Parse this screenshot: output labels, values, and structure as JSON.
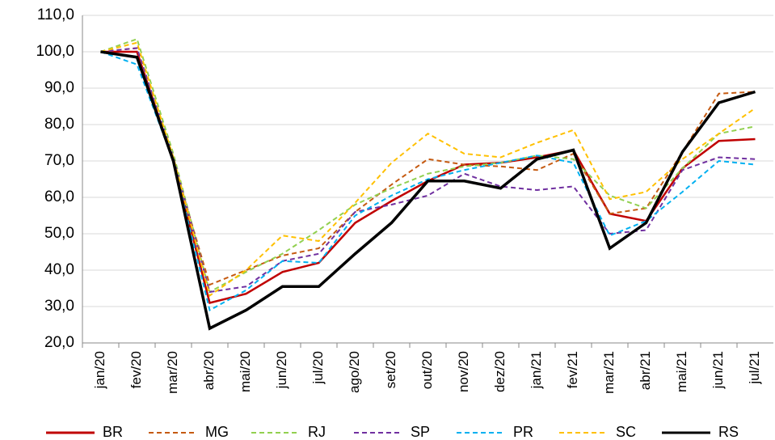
{
  "chart_data": {
    "type": "line",
    "categories": [
      "jan/20",
      "fev/20",
      "mar/20",
      "abr/20",
      "mai/20",
      "jun/20",
      "jul/20",
      "ago/20",
      "set/20",
      "out/20",
      "nov/20",
      "dez/20",
      "jan/21",
      "fev/21",
      "mar/21",
      "abr/21",
      "mai/21",
      "jun/21",
      "jul/21"
    ],
    "ylim": [
      20,
      110
    ],
    "yticks": [
      {
        "value": 20,
        "label": "20,0"
      },
      {
        "value": 30,
        "label": "30,0"
      },
      {
        "value": 40,
        "label": "40,0"
      },
      {
        "value": 50,
        "label": "50,0"
      },
      {
        "value": 60,
        "label": "60,0"
      },
      {
        "value": 70,
        "label": "70,0"
      },
      {
        "value": 80,
        "label": "80,0"
      },
      {
        "value": 90,
        "label": "90,0"
      },
      {
        "value": 100,
        "label": "100,0"
      },
      {
        "value": 110,
        "label": "110,0"
      }
    ],
    "grid": true,
    "legend": "bottom",
    "series": [
      {
        "name": "BR",
        "color": "#c00000",
        "dashed": false,
        "values": [
          100,
          100,
          70,
          31,
          33.5,
          39.5,
          42,
          53,
          59,
          64.5,
          69,
          69.5,
          71,
          73,
          55.5,
          53.5,
          68,
          75.5,
          76
        ]
      },
      {
        "name": "MG",
        "color": "#c55a11",
        "dashed": true,
        "values": [
          100,
          101,
          70,
          36,
          40,
          44,
          46,
          56,
          63.5,
          70.5,
          69,
          68.5,
          67.5,
          72,
          55.5,
          57,
          72.5,
          88.5,
          89
        ]
      },
      {
        "name": "RJ",
        "color": "#92d050",
        "dashed": true,
        "values": [
          100,
          103.5,
          72,
          34,
          39.5,
          44.5,
          51,
          58,
          62.5,
          66.5,
          68.5,
          69.5,
          71.5,
          70.5,
          60.5,
          57,
          68,
          77.5,
          79.5
        ]
      },
      {
        "name": "SP",
        "color": "#7030a0",
        "dashed": true,
        "values": [
          100,
          101,
          71,
          34,
          35.5,
          42.5,
          44.5,
          56,
          58,
          60.5,
          66.5,
          63,
          62,
          63,
          50,
          51,
          67.5,
          71,
          70.5
        ]
      },
      {
        "name": "PR",
        "color": "#00b0f0",
        "dashed": true,
        "values": [
          100,
          96.5,
          70,
          29,
          34.5,
          42.5,
          42,
          55,
          60.5,
          65,
          67.5,
          69.5,
          71.5,
          69.5,
          49.5,
          53.5,
          61.5,
          70,
          69
        ]
      },
      {
        "name": "SC",
        "color": "#ffc000",
        "dashed": true,
        "values": [
          100,
          102.5,
          71,
          33,
          40,
          49.5,
          48,
          58.5,
          69.5,
          77.5,
          72,
          71,
          75,
          78.5,
          59.5,
          61.5,
          70.5,
          77.5,
          84.5
        ]
      },
      {
        "name": "RS",
        "color": "#000000",
        "dashed": false,
        "values": [
          100,
          98.5,
          70,
          24,
          29,
          35.5,
          35.5,
          44.5,
          53,
          64.5,
          64.5,
          62.5,
          70.5,
          73,
          46,
          53,
          72.5,
          86,
          89
        ]
      }
    ]
  }
}
